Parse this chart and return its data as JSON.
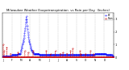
{
  "title": "Milwaukee Weather Evapotranspiration  vs Rain per Day  (Inches)",
  "title_fontsize": 2.8,
  "et_color": "#0000ff",
  "rain_color": "#cc0000",
  "legend_et": "ET",
  "legend_rain": "Rain",
  "ylim": [
    0,
    0.35
  ],
  "ylabel_fontsize": 2.5,
  "xlabel_fontsize": 2.2,
  "n_points": 365,
  "et_values": [
    0.01,
    0.01,
    0.01,
    0.01,
    0.01,
    0.01,
    0.01,
    0.01,
    0.01,
    0.01,
    0.01,
    0.01,
    0.01,
    0.01,
    0.01,
    0.01,
    0.01,
    0.01,
    0.01,
    0.01,
    0.01,
    0.01,
    0.01,
    0.01,
    0.01,
    0.01,
    0.01,
    0.01,
    0.01,
    0.01,
    0.02,
    0.02,
    0.02,
    0.02,
    0.02,
    0.02,
    0.02,
    0.02,
    0.02,
    0.02,
    0.02,
    0.02,
    0.02,
    0.02,
    0.02,
    0.02,
    0.02,
    0.02,
    0.02,
    0.02,
    0.03,
    0.03,
    0.03,
    0.03,
    0.03,
    0.03,
    0.03,
    0.03,
    0.03,
    0.04,
    0.05,
    0.06,
    0.07,
    0.08,
    0.09,
    0.1,
    0.11,
    0.12,
    0.13,
    0.14,
    0.15,
    0.17,
    0.19,
    0.21,
    0.23,
    0.25,
    0.27,
    0.3,
    0.32,
    0.3,
    0.28,
    0.25,
    0.22,
    0.2,
    0.18,
    0.16,
    0.14,
    0.13,
    0.12,
    0.11,
    0.1,
    0.09,
    0.08,
    0.07,
    0.06,
    0.06,
    0.05,
    0.05,
    0.04,
    0.04,
    0.04,
    0.04,
    0.03,
    0.03,
    0.03,
    0.03,
    0.03,
    0.03,
    0.03,
    0.03,
    0.03,
    0.03,
    0.03,
    0.03,
    0.03,
    0.03,
    0.03,
    0.03,
    0.03,
    0.03,
    0.02,
    0.02,
    0.02,
    0.02,
    0.02,
    0.02,
    0.02,
    0.02,
    0.02,
    0.02,
    0.02,
    0.02,
    0.02,
    0.02,
    0.02,
    0.02,
    0.02,
    0.02,
    0.02,
    0.02,
    0.02,
    0.02,
    0.02,
    0.02,
    0.02,
    0.02,
    0.02,
    0.02,
    0.02,
    0.02,
    0.02,
    0.02,
    0.02,
    0.02,
    0.02,
    0.02,
    0.02,
    0.02,
    0.02,
    0.02,
    0.02,
    0.02,
    0.02,
    0.02,
    0.02,
    0.02,
    0.02,
    0.02,
    0.02,
    0.02,
    0.02,
    0.02,
    0.02,
    0.02,
    0.02,
    0.02,
    0.02,
    0.02,
    0.02,
    0.02,
    0.02,
    0.02,
    0.02,
    0.02,
    0.02,
    0.02,
    0.02,
    0.02,
    0.02,
    0.02,
    0.02,
    0.02,
    0.02,
    0.02,
    0.02,
    0.02,
    0.02,
    0.02,
    0.02,
    0.02,
    0.02,
    0.02,
    0.02,
    0.02,
    0.02,
    0.02,
    0.02,
    0.02,
    0.02,
    0.02,
    0.02,
    0.02,
    0.02,
    0.02,
    0.02,
    0.02,
    0.02,
    0.02,
    0.02,
    0.02,
    0.02,
    0.02,
    0.02,
    0.02,
    0.02,
    0.02,
    0.02,
    0.02,
    0.02,
    0.02,
    0.02,
    0.02,
    0.02,
    0.02,
    0.02,
    0.02,
    0.02,
    0.02,
    0.02,
    0.02,
    0.02,
    0.02,
    0.02,
    0.02,
    0.02,
    0.02,
    0.02,
    0.02,
    0.02,
    0.02,
    0.02,
    0.02,
    0.02,
    0.02,
    0.02,
    0.02,
    0.02,
    0.02,
    0.02,
    0.02,
    0.02,
    0.02,
    0.02,
    0.02,
    0.02,
    0.02,
    0.02,
    0.02,
    0.02,
    0.02,
    0.02,
    0.02,
    0.02,
    0.02,
    0.02,
    0.02,
    0.02,
    0.02,
    0.02,
    0.02,
    0.02,
    0.02,
    0.02,
    0.02,
    0.02,
    0.02,
    0.02,
    0.02,
    0.02,
    0.02,
    0.02,
    0.02,
    0.02,
    0.02,
    0.02,
    0.02,
    0.02,
    0.02,
    0.02,
    0.02,
    0.02,
    0.02,
    0.02,
    0.03,
    0.03,
    0.03,
    0.03,
    0.03,
    0.03,
    0.03,
    0.03,
    0.03,
    0.03,
    0.03,
    0.03,
    0.03,
    0.03,
    0.03,
    0.03,
    0.03,
    0.03,
    0.03,
    0.03,
    0.03,
    0.03,
    0.03,
    0.03,
    0.03,
    0.03,
    0.03,
    0.03,
    0.03,
    0.03,
    0.03,
    0.03,
    0.03,
    0.03,
    0.03,
    0.03,
    0.03,
    0.02,
    0.02,
    0.02,
    0.02,
    0.02,
    0.02,
    0.02,
    0.02,
    0.02,
    0.02,
    0.02,
    0.02,
    0.02,
    0.02,
    0.02,
    0.02,
    0.02,
    0.02,
    0.02,
    0.02,
    0.01,
    0.01,
    0.01,
    0.01,
    0.01
  ],
  "rain_values": [
    0.0,
    0.0,
    0.1,
    0.0,
    0.0,
    0.05,
    0.0,
    0.0,
    0.0,
    0.0,
    0.0,
    0.0,
    0.0,
    0.0,
    0.08,
    0.0,
    0.0,
    0.0,
    0.0,
    0.0,
    0.0,
    0.0,
    0.0,
    0.0,
    0.0,
    0.0,
    0.03,
    0.0,
    0.0,
    0.0,
    0.0,
    0.0,
    0.0,
    0.0,
    0.0,
    0.0,
    0.0,
    0.0,
    0.0,
    0.0,
    0.0,
    0.0,
    0.0,
    0.0,
    0.0,
    0.0,
    0.0,
    0.0,
    0.0,
    0.0,
    0.0,
    0.04,
    0.0,
    0.0,
    0.0,
    0.0,
    0.0,
    0.0,
    0.0,
    0.0,
    0.0,
    0.0,
    0.0,
    0.0,
    0.0,
    0.0,
    0.0,
    0.0,
    0.0,
    0.0,
    0.0,
    0.0,
    0.0,
    0.05,
    0.0,
    0.0,
    0.0,
    0.0,
    0.0,
    0.0,
    0.0,
    0.0,
    0.0,
    0.0,
    0.04,
    0.0,
    0.0,
    0.0,
    0.0,
    0.0,
    0.0,
    0.0,
    0.0,
    0.0,
    0.0,
    0.0,
    0.0,
    0.0,
    0.0,
    0.0,
    0.05,
    0.0,
    0.0,
    0.0,
    0.0,
    0.0,
    0.0,
    0.0,
    0.0,
    0.0,
    0.0,
    0.0,
    0.0,
    0.0,
    0.0,
    0.0,
    0.0,
    0.0,
    0.0,
    0.0,
    0.0,
    0.0,
    0.0,
    0.0,
    0.0,
    0.0,
    0.0,
    0.0,
    0.0,
    0.0,
    0.0,
    0.0,
    0.0,
    0.0,
    0.0,
    0.0,
    0.0,
    0.0,
    0.0,
    0.0,
    0.0,
    0.0,
    0.0,
    0.05,
    0.0,
    0.0,
    0.0,
    0.0,
    0.0,
    0.0,
    0.0,
    0.0,
    0.0,
    0.0,
    0.0,
    0.0,
    0.0,
    0.03,
    0.0,
    0.0,
    0.0,
    0.0,
    0.0,
    0.0,
    0.0,
    0.0,
    0.0,
    0.0,
    0.0,
    0.0,
    0.0,
    0.0,
    0.0,
    0.05,
    0.0,
    0.0,
    0.0,
    0.0,
    0.0,
    0.0,
    0.0,
    0.0,
    0.0,
    0.0,
    0.0,
    0.0,
    0.0,
    0.0,
    0.0,
    0.03,
    0.0,
    0.0,
    0.0,
    0.0,
    0.0,
    0.0,
    0.0,
    0.0,
    0.04,
    0.0,
    0.0,
    0.0,
    0.0,
    0.0,
    0.0,
    0.0,
    0.0,
    0.0,
    0.0,
    0.0,
    0.0,
    0.03,
    0.0,
    0.0,
    0.0,
    0.0,
    0.0,
    0.0,
    0.0,
    0.0,
    0.0,
    0.0,
    0.0,
    0.05,
    0.0,
    0.0,
    0.0,
    0.0,
    0.0,
    0.0,
    0.07,
    0.0,
    0.0,
    0.0,
    0.0,
    0.0,
    0.0,
    0.0,
    0.0,
    0.0,
    0.0,
    0.0,
    0.0,
    0.0,
    0.0,
    0.0,
    0.0,
    0.0,
    0.0,
    0.0,
    0.0,
    0.0,
    0.0,
    0.0,
    0.05,
    0.0,
    0.0,
    0.03,
    0.0,
    0.0,
    0.0,
    0.0,
    0.0,
    0.0,
    0.0,
    0.0,
    0.0,
    0.0,
    0.0,
    0.0,
    0.0,
    0.0,
    0.03,
    0.0,
    0.0,
    0.0,
    0.0,
    0.0,
    0.0,
    0.0,
    0.0,
    0.0,
    0.0,
    0.0,
    0.0,
    0.0,
    0.0,
    0.0,
    0.05,
    0.0,
    0.0,
    0.0,
    0.0,
    0.0,
    0.0,
    0.0,
    0.0,
    0.0,
    0.03,
    0.0,
    0.0,
    0.0,
    0.0,
    0.0,
    0.0,
    0.0,
    0.0,
    0.0,
    0.0,
    0.0,
    0.0,
    0.0,
    0.0,
    0.0,
    0.0,
    0.0,
    0.0,
    0.0,
    0.0,
    0.0,
    0.0,
    0.0,
    0.0,
    0.0,
    0.0,
    0.0,
    0.0,
    0.0,
    0.0,
    0.0,
    0.0,
    0.0,
    0.0,
    0.0,
    0.0,
    0.0,
    0.0,
    0.0,
    0.0,
    0.0,
    0.0,
    0.0,
    0.0,
    0.0,
    0.0,
    0.0,
    0.0,
    0.0,
    0.0,
    0.0,
    0.0,
    0.0,
    0.0,
    0.0,
    0.0,
    0.0,
    0.0,
    0.0,
    0.0,
    0.0,
    0.0,
    0.0,
    0.0,
    0.0,
    0.0
  ],
  "x_tick_positions": [
    0,
    31,
    59,
    90,
    120,
    151,
    181,
    212,
    243,
    273,
    304,
    334
  ],
  "x_tick_labels": [
    "J",
    "F",
    "M",
    "A",
    "M",
    "J",
    "J",
    "A",
    "S",
    "O",
    "N",
    "D"
  ],
  "grid_positions": [
    0,
    31,
    59,
    90,
    120,
    151,
    181,
    212,
    243,
    273,
    304,
    334,
    364
  ],
  "y_tick_positions": [
    0.0,
    0.1,
    0.2,
    0.3
  ],
  "y_tick_labels": [
    "0",
    ".1",
    ".2",
    ".3"
  ],
  "background_color": "#ffffff"
}
